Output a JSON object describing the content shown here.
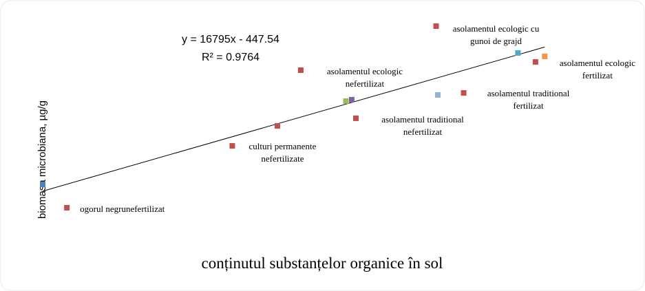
{
  "chart_data": {
    "type": "scatter",
    "equation": "y = 16795x - 447.54",
    "r_squared": "R² = 0.9764",
    "x_label": "conținutul substanțelor organice în sol",
    "y_label": "biomasa microbiana, µg/g",
    "xlim": [
      0.035,
      0.107
    ],
    "ylim": [
      0,
      1500
    ],
    "trendline": true,
    "grid": false,
    "series": [
      {
        "color": "#c0504d",
        "x": [
          0.0429,
          0.0627,
          0.0681,
          0.0709,
          0.0775,
          0.0871,
          0.0904,
          0.099
        ],
        "values": [
          42,
          524,
          680,
          1114,
          739,
          1457,
          937,
          1178
        ],
        "labels": [
          [
            "ogorul negrunefertilizat"
          ],
          [
            "culturi permanente",
            "nefertilizate"
          ],
          null,
          [
            "asolamentul ecologic",
            "nefertilizat"
          ],
          [
            "asolamentul traditional",
            "nefertilizat"
          ],
          [
            "asolamentul ecologic cu",
            "gunoi de grajd"
          ],
          [
            "asolamentul traditional",
            "fertilizat"
          ],
          [
            "asolamentul ecologic",
            "fertilizat"
          ]
        ]
      },
      {
        "color": "#4f81bd",
        "x": [
          0.04
        ],
        "values": [
          224
        ]
      },
      {
        "color": "#9bbb59",
        "x": [
          0.0763
        ],
        "values": [
          873
        ]
      },
      {
        "color": "#8064a2",
        "x": [
          0.077
        ],
        "values": [
          884
        ]
      },
      {
        "color": "#95b3d7",
        "x": [
          0.0873
        ],
        "values": [
          921
        ]
      },
      {
        "color": "#4bacc6",
        "x": [
          0.0969
        ],
        "values": [
          1248
        ]
      },
      {
        "color": "#f79646",
        "x": [
          0.1001
        ],
        "values": [
          1221
        ]
      }
    ]
  }
}
